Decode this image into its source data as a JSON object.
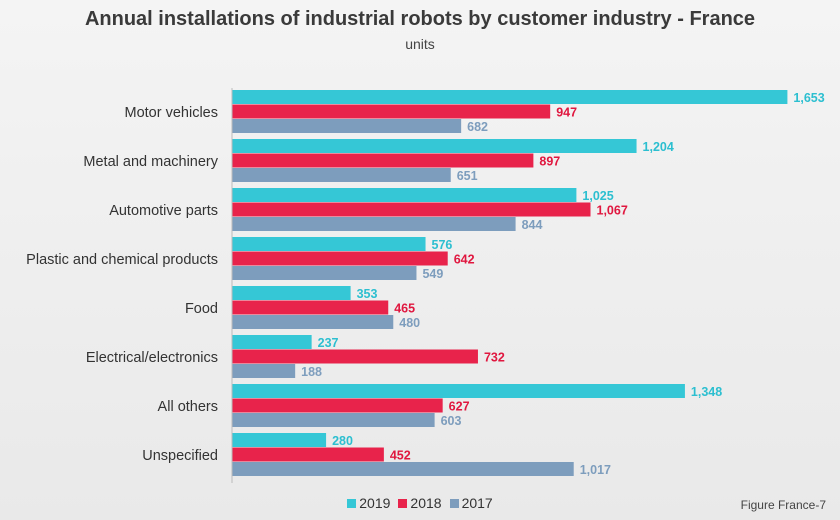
{
  "chart_data": {
    "type": "bar",
    "orientation": "horizontal",
    "title": "Annual installations of industrial robots by customer industry - France",
    "subtitle": "units",
    "categories": [
      "Motor vehicles",
      "Metal and machinery",
      "Automotive parts",
      "Plastic and chemical products",
      "Food",
      "Electrical/electronics",
      "All others",
      "Unspecified"
    ],
    "series": [
      {
        "name": "2019",
        "color": "#35c7d6",
        "values": [
          1653,
          1204,
          1025,
          576,
          353,
          237,
          1348,
          280
        ],
        "labels": [
          "1,653",
          "1,204",
          "1,025",
          "576",
          "353",
          "237",
          "1,348",
          "280"
        ]
      },
      {
        "name": "2018",
        "color": "#e8234b",
        "values": [
          947,
          897,
          1067,
          642,
          465,
          732,
          627,
          452
        ],
        "labels": [
          "947",
          "897",
          "1,067",
          "642",
          "465",
          "732",
          "627",
          "452"
        ]
      },
      {
        "name": "2017",
        "color": "#7d9dbd",
        "values": [
          682,
          651,
          844,
          549,
          480,
          188,
          603,
          1017
        ],
        "labels": [
          "682",
          "651",
          "844",
          "549",
          "480",
          "188",
          "603",
          "1,017"
        ]
      }
    ],
    "grid": false,
    "legend": "bottom",
    "data_labels": true
  },
  "footer": "Figure France-7"
}
